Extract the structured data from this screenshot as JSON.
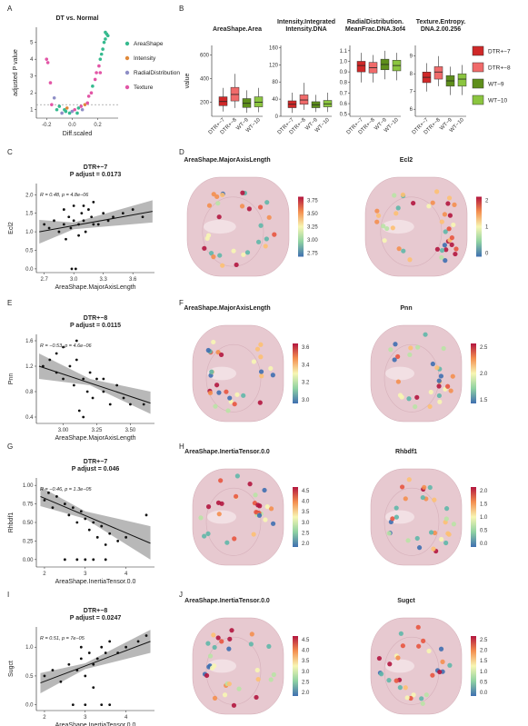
{
  "panels": {
    "A": "A",
    "B": "B",
    "C": "C",
    "D": "D",
    "E": "E",
    "F": "F",
    "G": "G",
    "H": "H",
    "I": "I",
    "J": "J"
  },
  "chart_data": [
    {
      "id": "A",
      "type": "scatter",
      "title": "DT vs. Normal",
      "xlabel": "Diff.scaled",
      "ylabel": "adjusted P value",
      "xlim": [
        -0.28,
        0.36
      ],
      "ylim": [
        0.5,
        5.9
      ],
      "xticks": [
        "-0.2",
        "0.0",
        "0.2"
      ],
      "xtick_values": [
        -0.2,
        0.0,
        0.2
      ],
      "yticks": [
        "1",
        "2",
        "3",
        "4",
        "5"
      ],
      "ytick_values": [
        1,
        2,
        3,
        4,
        5
      ],
      "threshold": 1.3,
      "legend": [
        {
          "name": "AreaShape",
          "color": "#36ba8f"
        },
        {
          "name": "Intensity",
          "color": "#e0893a"
        },
        {
          "name": "RadialDistribution",
          "color": "#8e8ec6"
        },
        {
          "name": "Texture",
          "color": "#e256a6"
        }
      ],
      "points": [
        [
          -0.2,
          4.0,
          3
        ],
        [
          -0.19,
          3.8,
          3
        ],
        [
          -0.17,
          2.6,
          3
        ],
        [
          -0.16,
          1.3,
          3
        ],
        [
          -0.14,
          1.7,
          2
        ],
        [
          -0.12,
          1.0,
          0
        ],
        [
          -0.1,
          1.2,
          0
        ],
        [
          -0.08,
          0.8,
          2
        ],
        [
          -0.06,
          1.0,
          0
        ],
        [
          -0.05,
          0.9,
          0
        ],
        [
          -0.04,
          1.1,
          1
        ],
        [
          -0.02,
          0.8,
          0
        ],
        [
          0.0,
          0.9,
          2
        ],
        [
          0.02,
          1.0,
          3
        ],
        [
          0.04,
          0.8,
          0
        ],
        [
          0.05,
          1.1,
          0
        ],
        [
          0.07,
          1.2,
          3
        ],
        [
          0.08,
          1.0,
          2
        ],
        [
          0.1,
          1.3,
          1
        ],
        [
          0.12,
          1.4,
          3
        ],
        [
          0.13,
          1.8,
          3
        ],
        [
          0.15,
          2.0,
          3
        ],
        [
          0.16,
          2.4,
          0
        ],
        [
          0.18,
          2.8,
          3
        ],
        [
          0.19,
          3.2,
          3
        ],
        [
          0.21,
          3.6,
          3
        ],
        [
          0.22,
          4.0,
          0
        ],
        [
          0.23,
          4.3,
          0
        ],
        [
          0.24,
          4.6,
          0
        ],
        [
          0.25,
          5.0,
          0
        ],
        [
          0.26,
          5.2,
          0
        ],
        [
          0.27,
          5.5,
          0
        ],
        [
          0.26,
          5.6,
          0
        ],
        [
          0.28,
          5.4,
          0
        ],
        [
          0.22,
          3.2,
          3
        ]
      ]
    },
    {
      "id": "B",
      "type": "box",
      "ylabel": "value",
      "legend": [
        {
          "name": "DTR+−7",
          "color": "#d02828"
        },
        {
          "name": "DTR+−8",
          "color": "#f06a6a"
        },
        {
          "name": "WT−9",
          "color": "#5e8f1b"
        },
        {
          "name": "WT−10",
          "color": "#8bc53f"
        }
      ],
      "categories": [
        "DTR+−7",
        "DTR+−8",
        "WT−9",
        "WT−10"
      ],
      "facets": [
        {
          "title": [
            "AreaShape.Area"
          ],
          "yticks": [
            "200",
            "400",
            "600"
          ],
          "ytick_values": [
            200,
            400,
            600
          ],
          "ylim": [
            80,
            680
          ],
          "boxes": [
            [
              120,
              170,
              205,
              245,
              320
            ],
            [
              150,
              210,
              265,
              325,
              440
            ],
            [
              110,
              155,
              190,
              230,
              300
            ],
            [
              115,
              160,
              200,
              245,
              320
            ]
          ]
        },
        {
          "title": [
            "Intensity.Integrated",
            "Intensity.DNA"
          ],
          "yticks": [
            "0",
            "40",
            "80",
            "120",
            "160"
          ],
          "ytick_values": [
            0,
            40,
            80,
            120,
            160
          ],
          "ylim": [
            0,
            165
          ],
          "boxes": [
            [
              8,
              20,
              28,
              36,
              55
            ],
            [
              15,
              28,
              38,
              50,
              78
            ],
            [
              10,
              20,
              27,
              34,
              50
            ],
            [
              10,
              22,
              29,
              37,
              55
            ]
          ]
        },
        {
          "title": [
            "RadialDistribution.",
            "MeanFrac.DNA.3of4"
          ],
          "yticks": [
            "0.5",
            "0.6",
            "0.7",
            "0.8",
            "0.9",
            "1.0",
            "1.1"
          ],
          "ytick_values": [
            0.5,
            0.6,
            0.7,
            0.8,
            0.9,
            1.0,
            1.1
          ],
          "ylim": [
            0.48,
            1.15
          ],
          "boxes": [
            [
              0.8,
              0.9,
              0.96,
              1.0,
              1.08
            ],
            [
              0.8,
              0.89,
              0.94,
              0.99,
              1.06
            ],
            [
              0.83,
              0.92,
              0.97,
              1.02,
              1.1
            ],
            [
              0.82,
              0.91,
              0.96,
              1.01,
              1.08
            ]
          ]
        },
        {
          "title": [
            "Texture.Entropy.",
            "DNA.2.00.256"
          ],
          "yticks": [
            "6",
            "7",
            "8",
            "9"
          ],
          "ytick_values": [
            6,
            7,
            8,
            9
          ],
          "ylim": [
            5.6,
            9.6
          ],
          "boxes": [
            [
              7.0,
              7.5,
              7.8,
              8.1,
              8.6
            ],
            [
              7.3,
              7.7,
              8.1,
              8.4,
              9.0
            ],
            [
              6.8,
              7.3,
              7.6,
              7.9,
              8.4
            ],
            [
              6.8,
              7.3,
              7.7,
              8.0,
              8.5
            ]
          ]
        }
      ]
    },
    {
      "id": "C",
      "type": "scatter",
      "title": [
        "DTR+−7",
        "P adjust = 0.0173"
      ],
      "xlabel": "AreaShape.MajorAxisLength",
      "ylabel": "Ecl2",
      "annotation": "R = 0.48, p = 4.8e−06",
      "xlim": [
        2.62,
        3.82
      ],
      "ylim": [
        -0.1,
        2.3
      ],
      "xticks": [
        "2.7",
        "3.0",
        "3.3",
        "3.6"
      ],
      "xtick_values": [
        2.7,
        3.0,
        3.3,
        3.6
      ],
      "yticks": [
        "0.0",
        "0.5",
        "1.0",
        "1.5",
        "2.0"
      ],
      "ytick_values": [
        0,
        0.5,
        1.0,
        1.5,
        2.0
      ],
      "fit": [
        [
          2.65,
          1.0
        ],
        [
          3.8,
          1.55
        ]
      ],
      "band": [
        [
          2.65,
          0.68,
          1.32
        ],
        [
          3.0,
          1.07,
          1.25
        ],
        [
          3.8,
          1.25,
          1.85
        ]
      ],
      "points": [
        [
          2.7,
          1.2
        ],
        [
          2.75,
          1.1
        ],
        [
          2.8,
          1.3
        ],
        [
          2.85,
          1.0
        ],
        [
          2.9,
          1.2
        ],
        [
          2.92,
          0.8
        ],
        [
          2.95,
          1.4
        ],
        [
          2.97,
          1.1
        ],
        [
          3.0,
          1.3
        ],
        [
          3.02,
          0.0
        ],
        [
          3.05,
          1.2
        ],
        [
          3.05,
          0.9
        ],
        [
          3.08,
          1.5
        ],
        [
          3.1,
          1.3
        ],
        [
          3.12,
          1.0
        ],
        [
          3.15,
          1.6
        ],
        [
          3.18,
          1.4
        ],
        [
          3.2,
          1.8
        ],
        [
          3.25,
          1.2
        ],
        [
          3.3,
          1.5
        ],
        [
          3.35,
          1.3
        ],
        [
          3.4,
          1.4
        ],
        [
          3.5,
          1.5
        ],
        [
          3.6,
          1.6
        ],
        [
          3.7,
          1.4
        ],
        [
          2.98,
          0.0
        ],
        [
          2.9,
          1.6
        ],
        [
          3.0,
          1.7
        ],
        [
          3.1,
          1.7
        ],
        [
          3.2,
          1.2
        ]
      ]
    },
    {
      "id": "E",
      "type": "scatter",
      "title": [
        "DTR+−8",
        "P adjust = 0.0115"
      ],
      "xlabel": "AreaShape.MajorAxisLength",
      "ylabel": "Pnn",
      "annotation": "R = −0.53, p = 4.6e−06",
      "xlim": [
        2.8,
        3.68
      ],
      "ylim": [
        0.3,
        1.7
      ],
      "xticks": [
        "3.00",
        "3.25",
        "3.50"
      ],
      "xtick_values": [
        3.0,
        3.25,
        3.5
      ],
      "yticks": [
        "0.4",
        "0.8",
        "1.2",
        "1.6"
      ],
      "ytick_values": [
        0.4,
        0.8,
        1.2,
        1.6
      ],
      "fit": [
        [
          2.82,
          1.2
        ],
        [
          3.65,
          0.62
        ]
      ],
      "band": [
        [
          2.82,
          1.0,
          1.4
        ],
        [
          3.2,
          0.9,
          1.0
        ],
        [
          3.65,
          0.45,
          0.8
        ]
      ],
      "points": [
        [
          2.85,
          1.2
        ],
        [
          2.9,
          1.3
        ],
        [
          2.95,
          1.1
        ],
        [
          3.0,
          1.5
        ],
        [
          3.0,
          1.0
        ],
        [
          3.05,
          1.2
        ],
        [
          3.08,
          0.9
        ],
        [
          3.1,
          1.3
        ],
        [
          3.12,
          0.5
        ],
        [
          3.15,
          1.0
        ],
        [
          3.18,
          0.8
        ],
        [
          3.2,
          1.1
        ],
        [
          3.22,
          0.7
        ],
        [
          3.25,
          1.0
        ],
        [
          3.3,
          0.8
        ],
        [
          3.35,
          0.6
        ],
        [
          3.4,
          0.9
        ],
        [
          3.45,
          0.7
        ],
        [
          3.5,
          0.6
        ],
        [
          3.6,
          0.6
        ],
        [
          2.95,
          1.4
        ],
        [
          3.1,
          1.6
        ],
        [
          3.15,
          0.4
        ],
        [
          3.3,
          1.0
        ]
      ]
    },
    {
      "id": "G",
      "type": "scatter",
      "title": [
        "DTR+−7",
        "P adjust = 0.046"
      ],
      "xlabel": "AreaShape.InertiaTensor.0.0",
      "ylabel": "Rhbdf1",
      "annotation": "R = −0.46, p = 1.3e−05",
      "xlim": [
        1.8,
        4.7
      ],
      "ylim": [
        -0.1,
        1.1
      ],
      "xticks": [
        "2",
        "3",
        "4"
      ],
      "xtick_values": [
        2,
        3,
        4
      ],
      "yticks": [
        "0.00",
        "0.25",
        "0.50",
        "0.75",
        "1.00"
      ],
      "ytick_values": [
        0,
        0.25,
        0.5,
        0.75,
        1.0
      ],
      "fit": [
        [
          1.9,
          0.85
        ],
        [
          4.6,
          0.22
        ]
      ],
      "band": [
        [
          1.9,
          0.72,
          0.98
        ],
        [
          3.0,
          0.55,
          0.65
        ],
        [
          4.6,
          0.0,
          0.45
        ]
      ],
      "points": [
        [
          2.0,
          0.8
        ],
        [
          2.1,
          0.9
        ],
        [
          2.2,
          0.7
        ],
        [
          2.3,
          0.85
        ],
        [
          2.5,
          0.75
        ],
        [
          2.6,
          0.6
        ],
        [
          2.7,
          0.7
        ],
        [
          2.8,
          0.5
        ],
        [
          2.9,
          0.65
        ],
        [
          3.0,
          0.55
        ],
        [
          3.1,
          0.4
        ],
        [
          3.2,
          0.5
        ],
        [
          3.3,
          0.3
        ],
        [
          3.4,
          0.45
        ],
        [
          3.5,
          0.2
        ],
        [
          3.6,
          0.35
        ],
        [
          3.8,
          0.25
        ],
        [
          4.0,
          0.3
        ],
        [
          4.5,
          0.6
        ],
        [
          2.5,
          0.0
        ],
        [
          3.0,
          0.0
        ],
        [
          3.2,
          0.0
        ],
        [
          3.5,
          0.0
        ],
        [
          2.8,
          0.0
        ]
      ]
    },
    {
      "id": "I",
      "type": "scatter",
      "title": [
        "DTR+−8",
        "P adjust = 0.0247"
      ],
      "xlabel": "AreaShape.InertiaTensor.0.0",
      "ylabel": "Sugct",
      "annotation": "R = 0.51, p = 7e−05",
      "xlim": [
        1.8,
        4.7
      ],
      "ylim": [
        -0.1,
        1.35
      ],
      "xticks": [
        "2",
        "3",
        "4"
      ],
      "xtick_values": [
        2,
        3,
        4
      ],
      "yticks": [
        "0.0",
        "0.5",
        "1.0"
      ],
      "ytick_values": [
        0,
        0.5,
        1.0
      ],
      "fit": [
        [
          1.9,
          0.38
        ],
        [
          4.6,
          1.1
        ]
      ],
      "band": [
        [
          1.9,
          0.2,
          0.55
        ],
        [
          3.0,
          0.62,
          0.72
        ],
        [
          4.6,
          0.9,
          1.3
        ]
      ],
      "points": [
        [
          2.0,
          0.5
        ],
        [
          2.2,
          0.6
        ],
        [
          2.4,
          0.4
        ],
        [
          2.6,
          0.7
        ],
        [
          2.8,
          0.6
        ],
        [
          2.9,
          0.8
        ],
        [
          3.0,
          0.5
        ],
        [
          3.1,
          0.9
        ],
        [
          3.2,
          0.7
        ],
        [
          3.3,
          0.8
        ],
        [
          3.4,
          1.0
        ],
        [
          3.5,
          0.9
        ],
        [
          3.6,
          1.1
        ],
        [
          3.8,
          0.9
        ],
        [
          4.0,
          1.0
        ],
        [
          4.3,
          1.1
        ],
        [
          4.5,
          1.2
        ],
        [
          2.7,
          0.0
        ],
        [
          3.0,
          0.0
        ],
        [
          3.4,
          0.0
        ],
        [
          3.6,
          0.0
        ],
        [
          3.2,
          0.3
        ],
        [
          2.9,
          1.0
        ]
      ]
    }
  ],
  "tissue_maps": [
    {
      "panel": "D",
      "title": "AreaShape.MajorAxisLength",
      "ticks": [
        "3.75",
        "3.50",
        "3.25",
        "3.00",
        "2.75"
      ]
    },
    {
      "panel": "D",
      "title": "Ecl2",
      "ticks": [
        "2",
        "1",
        "0"
      ]
    },
    {
      "panel": "F",
      "title": "AreaShape.MajorAxisLength",
      "ticks": [
        "3.6",
        "3.4",
        "3.2",
        "3.0"
      ]
    },
    {
      "panel": "F",
      "title": "Pnn",
      "ticks": [
        "2.5",
        "2.0",
        "1.5"
      ]
    },
    {
      "panel": "H",
      "title": "AreaShape.InertiaTensor.0.0",
      "ticks": [
        "4.5",
        "4.0",
        "3.5",
        "3.0",
        "2.5",
        "2.0"
      ]
    },
    {
      "panel": "H",
      "title": "Rhbdf1",
      "ticks": [
        "2.0",
        "1.5",
        "1.0",
        "0.5",
        "0.0"
      ]
    },
    {
      "panel": "J",
      "title": "AreaShape.InertiaTensor.0.0",
      "ticks": [
        "4.5",
        "4.0",
        "3.5",
        "3.0",
        "2.5",
        "2.0"
      ]
    },
    {
      "panel": "J",
      "title": "Sugct",
      "ticks": [
        "2.5",
        "2.0",
        "1.5",
        "1.0",
        "0.5",
        "0.0"
      ]
    }
  ]
}
